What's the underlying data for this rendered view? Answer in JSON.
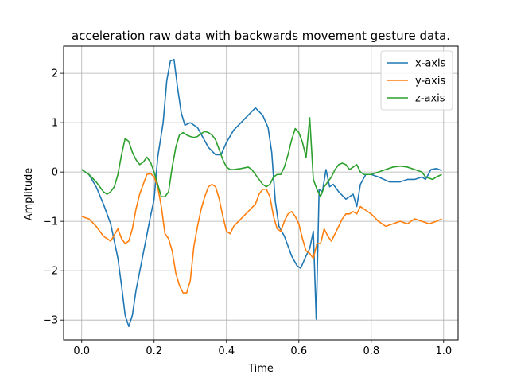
{
  "chart_data": {
    "type": "line",
    "title": "acceleration raw data with backwards movement gesture data.",
    "xlabel": "Time",
    "ylabel": "Amplitude",
    "xlim": [
      -0.05,
      1.04
    ],
    "ylim": [
      -3.4,
      2.55
    ],
    "xticks": [
      0.0,
      0.2,
      0.4,
      0.6,
      0.8,
      1.0
    ],
    "xtick_labels": [
      "0.0",
      "0.2",
      "0.4",
      "0.6",
      "0.8",
      "1.0"
    ],
    "yticks": [
      -3,
      -2,
      -1,
      0,
      1,
      2
    ],
    "ytick_labels": [
      "−3",
      "−2",
      "−1",
      "0",
      "1",
      "2"
    ],
    "grid": true,
    "legend_position": "upper right",
    "series": [
      {
        "name": "x-axis",
        "color": "#1f77b4",
        "points": [
          [
            0.0,
            0.05
          ],
          [
            0.02,
            -0.05
          ],
          [
            0.04,
            -0.3
          ],
          [
            0.06,
            -0.65
          ],
          [
            0.08,
            -1.05
          ],
          [
            0.1,
            -1.75
          ],
          [
            0.11,
            -2.3
          ],
          [
            0.12,
            -2.9
          ],
          [
            0.13,
            -3.13
          ],
          [
            0.14,
            -2.9
          ],
          [
            0.15,
            -2.4
          ],
          [
            0.17,
            -1.65
          ],
          [
            0.19,
            -0.9
          ],
          [
            0.2,
            -0.55
          ],
          [
            0.21,
            0.3
          ],
          [
            0.225,
            1.0
          ],
          [
            0.235,
            1.85
          ],
          [
            0.245,
            2.25
          ],
          [
            0.255,
            2.28
          ],
          [
            0.265,
            1.7
          ],
          [
            0.275,
            1.2
          ],
          [
            0.285,
            0.95
          ],
          [
            0.3,
            1.0
          ],
          [
            0.32,
            0.9
          ],
          [
            0.35,
            0.5
          ],
          [
            0.37,
            0.35
          ],
          [
            0.385,
            0.35
          ],
          [
            0.4,
            0.6
          ],
          [
            0.42,
            0.85
          ],
          [
            0.44,
            1.0
          ],
          [
            0.46,
            1.15
          ],
          [
            0.48,
            1.3
          ],
          [
            0.5,
            1.15
          ],
          [
            0.515,
            0.9
          ],
          [
            0.525,
            0.4
          ],
          [
            0.535,
            -0.6
          ],
          [
            0.545,
            -1.1
          ],
          [
            0.56,
            -1.3
          ],
          [
            0.58,
            -1.7
          ],
          [
            0.595,
            -1.9
          ],
          [
            0.605,
            -1.95
          ],
          [
            0.62,
            -1.7
          ],
          [
            0.63,
            -1.55
          ],
          [
            0.64,
            -1.2
          ],
          [
            0.648,
            -2.98
          ],
          [
            0.656,
            -0.35
          ],
          [
            0.665,
            -0.4
          ],
          [
            0.675,
            0.05
          ],
          [
            0.685,
            -0.3
          ],
          [
            0.695,
            -0.25
          ],
          [
            0.71,
            -0.4
          ],
          [
            0.73,
            -0.55
          ],
          [
            0.75,
            -0.45
          ],
          [
            0.76,
            -0.7
          ],
          [
            0.77,
            -0.25
          ],
          [
            0.785,
            -0.05
          ],
          [
            0.8,
            -0.05
          ],
          [
            0.82,
            -0.1
          ],
          [
            0.85,
            -0.2
          ],
          [
            0.88,
            -0.2
          ],
          [
            0.9,
            -0.15
          ],
          [
            0.92,
            -0.15
          ],
          [
            0.94,
            -0.1
          ],
          [
            0.95,
            -0.15
          ],
          [
            0.965,
            0.05
          ],
          [
            0.98,
            0.07
          ],
          [
            0.995,
            0.03
          ]
        ]
      },
      {
        "name": "y-axis",
        "color": "#ff7f0e",
        "points": [
          [
            0.0,
            -0.9
          ],
          [
            0.02,
            -0.95
          ],
          [
            0.04,
            -1.1
          ],
          [
            0.06,
            -1.3
          ],
          [
            0.08,
            -1.4
          ],
          [
            0.1,
            -1.15
          ],
          [
            0.11,
            -1.35
          ],
          [
            0.12,
            -1.45
          ],
          [
            0.13,
            -1.4
          ],
          [
            0.14,
            -1.15
          ],
          [
            0.15,
            -0.75
          ],
          [
            0.16,
            -0.45
          ],
          [
            0.17,
            -0.25
          ],
          [
            0.18,
            -0.05
          ],
          [
            0.19,
            -0.03
          ],
          [
            0.2,
            -0.1
          ],
          [
            0.21,
            -0.3
          ],
          [
            0.22,
            -0.7
          ],
          [
            0.23,
            -1.25
          ],
          [
            0.24,
            -1.35
          ],
          [
            0.25,
            -1.6
          ],
          [
            0.26,
            -2.05
          ],
          [
            0.27,
            -2.3
          ],
          [
            0.28,
            -2.45
          ],
          [
            0.29,
            -2.45
          ],
          [
            0.3,
            -2.2
          ],
          [
            0.31,
            -1.5
          ],
          [
            0.32,
            -1.1
          ],
          [
            0.33,
            -0.75
          ],
          [
            0.34,
            -0.5
          ],
          [
            0.35,
            -0.3
          ],
          [
            0.36,
            -0.25
          ],
          [
            0.37,
            -0.3
          ],
          [
            0.38,
            -0.55
          ],
          [
            0.39,
            -0.9
          ],
          [
            0.4,
            -1.2
          ],
          [
            0.41,
            -1.25
          ],
          [
            0.42,
            -1.1
          ],
          [
            0.44,
            -0.95
          ],
          [
            0.46,
            -0.8
          ],
          [
            0.48,
            -0.65
          ],
          [
            0.49,
            -0.45
          ],
          [
            0.5,
            -0.35
          ],
          [
            0.51,
            -0.35
          ],
          [
            0.52,
            -0.5
          ],
          [
            0.53,
            -0.9
          ],
          [
            0.54,
            -1.15
          ],
          [
            0.55,
            -1.2
          ],
          [
            0.56,
            -1.0
          ],
          [
            0.57,
            -0.85
          ],
          [
            0.58,
            -0.8
          ],
          [
            0.59,
            -0.9
          ],
          [
            0.6,
            -1.05
          ],
          [
            0.61,
            -1.35
          ],
          [
            0.62,
            -1.6
          ],
          [
            0.63,
            -1.65
          ],
          [
            0.64,
            -1.75
          ],
          [
            0.65,
            -1.45
          ],
          [
            0.66,
            -1.45
          ],
          [
            0.67,
            -1.15
          ],
          [
            0.68,
            -1.3
          ],
          [
            0.69,
            -1.4
          ],
          [
            0.7,
            -1.25
          ],
          [
            0.71,
            -1.1
          ],
          [
            0.72,
            -0.95
          ],
          [
            0.73,
            -0.85
          ],
          [
            0.74,
            -0.85
          ],
          [
            0.75,
            -0.8
          ],
          [
            0.76,
            -0.85
          ],
          [
            0.77,
            -0.7
          ],
          [
            0.78,
            -0.75
          ],
          [
            0.8,
            -0.85
          ],
          [
            0.82,
            -1.0
          ],
          [
            0.84,
            -1.1
          ],
          [
            0.86,
            -1.05
          ],
          [
            0.88,
            -1.0
          ],
          [
            0.9,
            -1.05
          ],
          [
            0.92,
            -0.95
          ],
          [
            0.94,
            -1.0
          ],
          [
            0.96,
            -1.05
          ],
          [
            0.98,
            -1.0
          ],
          [
            0.995,
            -0.95
          ]
        ]
      },
      {
        "name": "z-axis",
        "color": "#2ca02c",
        "points": [
          [
            0.0,
            0.05
          ],
          [
            0.02,
            -0.05
          ],
          [
            0.04,
            -0.2
          ],
          [
            0.06,
            -0.4
          ],
          [
            0.07,
            -0.45
          ],
          [
            0.08,
            -0.4
          ],
          [
            0.09,
            -0.3
          ],
          [
            0.1,
            -0.05
          ],
          [
            0.11,
            0.35
          ],
          [
            0.12,
            0.68
          ],
          [
            0.13,
            0.62
          ],
          [
            0.14,
            0.4
          ],
          [
            0.15,
            0.25
          ],
          [
            0.16,
            0.15
          ],
          [
            0.17,
            0.2
          ],
          [
            0.18,
            0.3
          ],
          [
            0.19,
            0.2
          ],
          [
            0.2,
            0.0
          ],
          [
            0.21,
            -0.25
          ],
          [
            0.22,
            -0.5
          ],
          [
            0.23,
            -0.5
          ],
          [
            0.24,
            -0.4
          ],
          [
            0.25,
            0.1
          ],
          [
            0.26,
            0.5
          ],
          [
            0.27,
            0.75
          ],
          [
            0.28,
            0.8
          ],
          [
            0.29,
            0.75
          ],
          [
            0.3,
            0.72
          ],
          [
            0.31,
            0.7
          ],
          [
            0.32,
            0.72
          ],
          [
            0.33,
            0.78
          ],
          [
            0.34,
            0.82
          ],
          [
            0.35,
            0.8
          ],
          [
            0.36,
            0.75
          ],
          [
            0.37,
            0.65
          ],
          [
            0.38,
            0.45
          ],
          [
            0.39,
            0.25
          ],
          [
            0.4,
            0.1
          ],
          [
            0.41,
            0.05
          ],
          [
            0.42,
            0.05
          ],
          [
            0.44,
            0.07
          ],
          [
            0.46,
            0.1
          ],
          [
            0.47,
            0.05
          ],
          [
            0.48,
            -0.05
          ],
          [
            0.49,
            -0.15
          ],
          [
            0.5,
            -0.25
          ],
          [
            0.51,
            -0.3
          ],
          [
            0.52,
            -0.25
          ],
          [
            0.53,
            -0.1
          ],
          [
            0.54,
            -0.05
          ],
          [
            0.55,
            -0.05
          ],
          [
            0.56,
            0.1
          ],
          [
            0.57,
            0.35
          ],
          [
            0.58,
            0.65
          ],
          [
            0.59,
            0.88
          ],
          [
            0.6,
            0.8
          ],
          [
            0.61,
            0.6
          ],
          [
            0.62,
            0.3
          ],
          [
            0.63,
            1.1
          ],
          [
            0.64,
            -0.15
          ],
          [
            0.65,
            -0.35
          ],
          [
            0.66,
            -0.5
          ],
          [
            0.67,
            -0.3
          ],
          [
            0.68,
            -0.2
          ],
          [
            0.69,
            -0.1
          ],
          [
            0.7,
            0.05
          ],
          [
            0.71,
            0.15
          ],
          [
            0.72,
            0.18
          ],
          [
            0.73,
            0.15
          ],
          [
            0.74,
            0.05
          ],
          [
            0.75,
            0.1
          ],
          [
            0.76,
            0.15
          ],
          [
            0.77,
            0.0
          ],
          [
            0.78,
            -0.05
          ],
          [
            0.8,
            -0.05
          ],
          [
            0.82,
            0.0
          ],
          [
            0.84,
            0.05
          ],
          [
            0.86,
            0.1
          ],
          [
            0.88,
            0.12
          ],
          [
            0.9,
            0.1
          ],
          [
            0.92,
            0.05
          ],
          [
            0.94,
            0.0
          ],
          [
            0.95,
            -0.1
          ],
          [
            0.97,
            -0.15
          ],
          [
            0.98,
            -0.1
          ],
          [
            0.995,
            -0.05
          ]
        ]
      }
    ]
  }
}
